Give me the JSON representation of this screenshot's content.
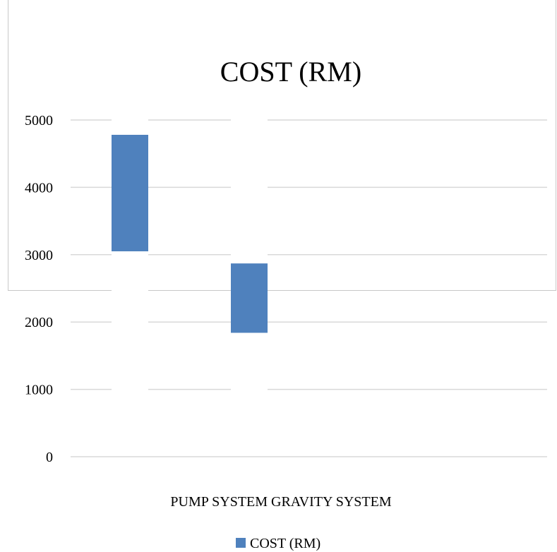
{
  "chart_data": {
    "type": "bar",
    "title": "COST (RM)",
    "categories_label": "PUMP SYSTEM GRAVITY SYSTEM",
    "categories": [
      "PUMP SYSTEM",
      "GRAVITY SYSTEM"
    ],
    "series": [
      {
        "name": "COST (RM)",
        "ranges": [
          [
            3050,
            4780
          ],
          [
            1840,
            2870
          ]
        ]
      }
    ],
    "y_ticks": [
      "0",
      "1000",
      "2000",
      "3000",
      "4000",
      "5000"
    ],
    "ylim": [
      0,
      5000
    ],
    "grid": true,
    "legend_position": "bottom",
    "colors": {
      "bar": "#4f81bd",
      "grid": "#d9d9d9"
    }
  }
}
